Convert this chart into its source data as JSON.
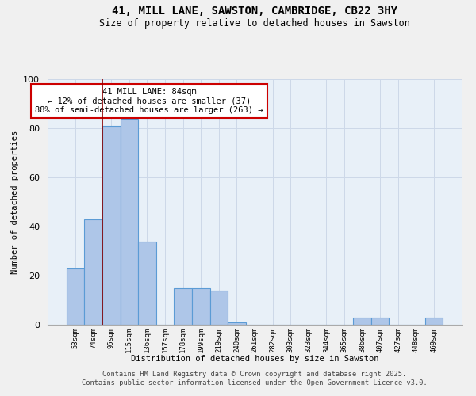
{
  "title": "41, MILL LANE, SAWSTON, CAMBRIDGE, CB22 3HY",
  "subtitle": "Size of property relative to detached houses in Sawston",
  "xlabel": "Distribution of detached houses by size in Sawston",
  "ylabel": "Number of detached properties",
  "bar_labels": [
    "53sqm",
    "74sqm",
    "95sqm",
    "115sqm",
    "136sqm",
    "157sqm",
    "178sqm",
    "199sqm",
    "219sqm",
    "240sqm",
    "261sqm",
    "282sqm",
    "303sqm",
    "323sqm",
    "344sqm",
    "365sqm",
    "386sqm",
    "407sqm",
    "427sqm",
    "448sqm",
    "469sqm"
  ],
  "bar_values": [
    23,
    43,
    81,
    84,
    34,
    0,
    15,
    15,
    14,
    1,
    0,
    0,
    0,
    0,
    0,
    0,
    3,
    3,
    0,
    0,
    3
  ],
  "bar_color": "#aec6e8",
  "bar_edge_color": "#5b9bd5",
  "grid_color": "#cdd8e8",
  "background_color": "#e8f0f8",
  "vline_x": 1.5,
  "vline_color": "#8b0000",
  "annotation_text": "41 MILL LANE: 84sqm\n← 12% of detached houses are smaller (37)\n88% of semi-detached houses are larger (263) →",
  "annotation_box_color": "#ffffff",
  "annotation_box_edge": "#cc0000",
  "ylim": [
    0,
    100
  ],
  "yticks": [
    0,
    20,
    40,
    60,
    80,
    100
  ],
  "footer_line1": "Contains HM Land Registry data © Crown copyright and database right 2025.",
  "footer_line2": "Contains public sector information licensed under the Open Government Licence v3.0.",
  "fig_bg": "#f0f0f0"
}
